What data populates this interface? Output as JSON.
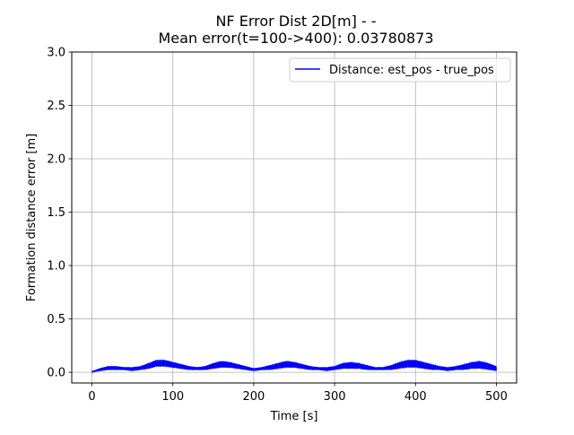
{
  "chart_data": {
    "type": "line",
    "title": "NF Error Dist 2D[m] -  -",
    "subtitle": "Mean error(t=100->400): 0.03780873",
    "xlabel": "Time [s]",
    "ylabel": "Formation distance error [m]",
    "xlim": [
      -25,
      525
    ],
    "ylim": [
      -0.1,
      3.0
    ],
    "xticks": [
      0,
      100,
      200,
      300,
      400,
      500
    ],
    "xtick_labels": [
      "0",
      "100",
      "200",
      "300",
      "400",
      "500"
    ],
    "yticks": [
      0.0,
      0.5,
      1.0,
      1.5,
      2.0,
      2.5,
      3.0
    ],
    "ytick_labels": [
      "0.0",
      "0.5",
      "1.0",
      "1.5",
      "2.0",
      "2.5",
      "3.0"
    ],
    "grid": true,
    "legend_position": "upper-right",
    "series": [
      {
        "name": "Distance: est_pos - true_pos",
        "color": "#0000ff",
        "x": [
          0,
          10,
          20,
          30,
          40,
          50,
          60,
          70,
          80,
          90,
          100,
          110,
          120,
          130,
          140,
          150,
          160,
          170,
          180,
          190,
          200,
          210,
          220,
          230,
          240,
          250,
          260,
          270,
          280,
          290,
          300,
          310,
          320,
          330,
          340,
          350,
          360,
          370,
          380,
          390,
          400,
          410,
          420,
          430,
          440,
          450,
          460,
          470,
          480,
          490,
          500
        ],
        "y_low": [
          0.0,
          0.01,
          0.02,
          0.02,
          0.02,
          0.01,
          0.02,
          0.03,
          0.05,
          0.05,
          0.04,
          0.03,
          0.02,
          0.02,
          0.02,
          0.03,
          0.04,
          0.04,
          0.03,
          0.02,
          0.01,
          0.02,
          0.02,
          0.03,
          0.04,
          0.04,
          0.03,
          0.02,
          0.02,
          0.01,
          0.02,
          0.03,
          0.03,
          0.03,
          0.02,
          0.02,
          0.02,
          0.02,
          0.03,
          0.04,
          0.04,
          0.03,
          0.02,
          0.02,
          0.01,
          0.02,
          0.02,
          0.03,
          0.03,
          0.02,
          0.01
        ],
        "y_high": [
          0.01,
          0.04,
          0.06,
          0.06,
          0.05,
          0.05,
          0.06,
          0.09,
          0.12,
          0.12,
          0.1,
          0.08,
          0.06,
          0.05,
          0.06,
          0.09,
          0.11,
          0.1,
          0.08,
          0.06,
          0.04,
          0.05,
          0.07,
          0.09,
          0.11,
          0.1,
          0.08,
          0.06,
          0.05,
          0.05,
          0.06,
          0.09,
          0.1,
          0.09,
          0.07,
          0.05,
          0.05,
          0.07,
          0.1,
          0.12,
          0.12,
          0.1,
          0.08,
          0.06,
          0.05,
          0.06,
          0.08,
          0.1,
          0.11,
          0.09,
          0.06
        ]
      }
    ]
  }
}
